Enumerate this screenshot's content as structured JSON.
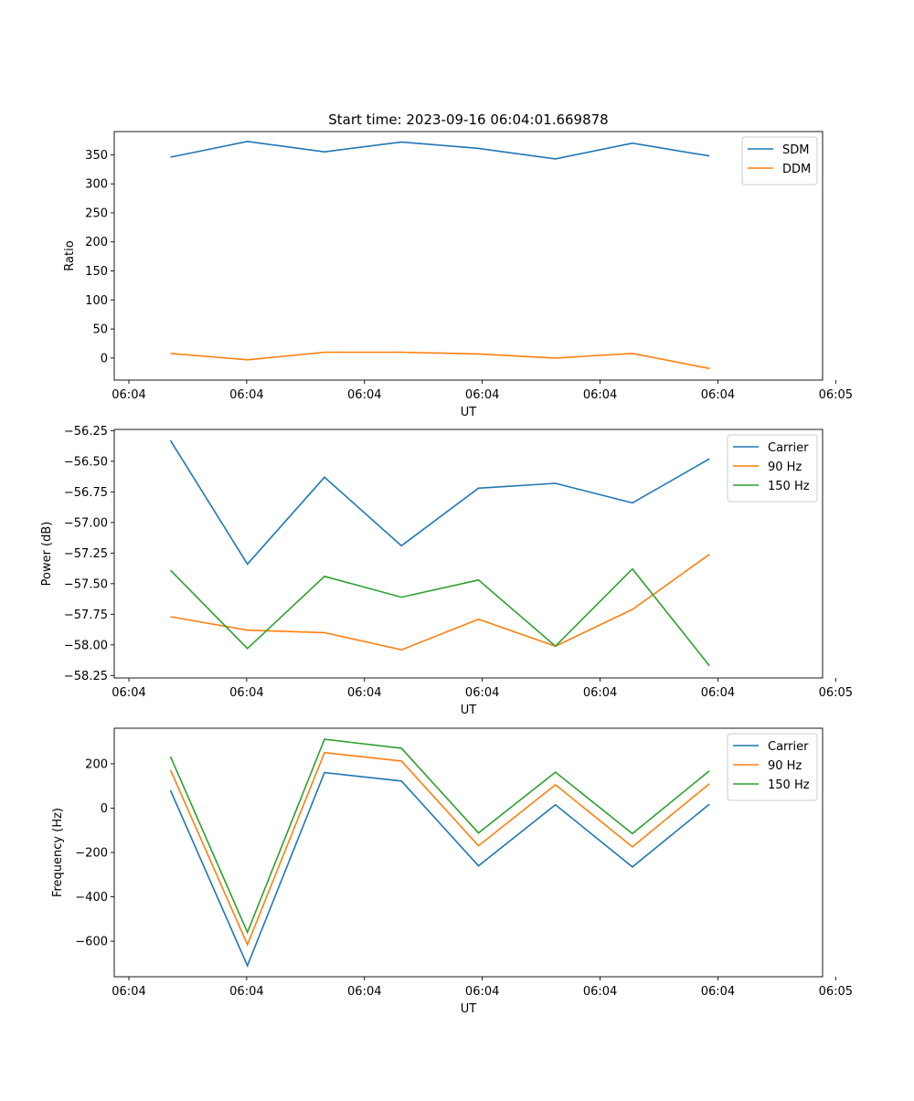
{
  "title": "Start time: 2023-09-16 06:04:01.669878",
  "chart_data": [
    {
      "type": "line",
      "ylabel": "Ratio",
      "xlabel": "UT",
      "x": [
        1,
        2,
        3,
        4,
        5,
        6,
        7,
        8
      ],
      "xlim": [
        0.27,
        9.47
      ],
      "xticks": [
        {
          "x": 0.46,
          "label": "06:04"
        },
        {
          "x": 1.99,
          "label": "06:04"
        },
        {
          "x": 3.52,
          "label": "06:04"
        },
        {
          "x": 5.05,
          "label": "06:04"
        },
        {
          "x": 6.58,
          "label": "06:04"
        },
        {
          "x": 8.11,
          "label": "06:04"
        },
        {
          "x": 9.64,
          "label": "06:05"
        }
      ],
      "ylim": [
        -38,
        390
      ],
      "yticks": [
        0,
        50,
        100,
        150,
        200,
        250,
        300,
        350
      ],
      "legend": "top-right",
      "series": [
        {
          "name": "SDM",
          "color": "#1f77b4",
          "values": [
            346,
            373,
            355,
            372,
            361,
            343,
            370,
            348
          ]
        },
        {
          "name": "DDM",
          "color": "#ff7f0e",
          "values": [
            8,
            -3,
            10,
            10,
            7,
            0,
            8,
            -18
          ]
        }
      ]
    },
    {
      "type": "line",
      "ylabel": "Power (dB)",
      "xlabel": "UT",
      "x": [
        1,
        2,
        3,
        4,
        5,
        6,
        7,
        8
      ],
      "xlim": [
        0.27,
        9.47
      ],
      "xticks": [
        {
          "x": 0.46,
          "label": "06:04"
        },
        {
          "x": 1.99,
          "label": "06:04"
        },
        {
          "x": 3.52,
          "label": "06:04"
        },
        {
          "x": 5.05,
          "label": "06:04"
        },
        {
          "x": 6.58,
          "label": "06:04"
        },
        {
          "x": 8.11,
          "label": "06:04"
        },
        {
          "x": 9.64,
          "label": "06:05"
        }
      ],
      "ylim": [
        -58.27,
        -56.24
      ],
      "yticks": [
        -58.25,
        -58.0,
        -57.75,
        -57.5,
        -57.25,
        -57.0,
        -56.75,
        -56.5,
        -56.25
      ],
      "ytick_labels": [
        "−58.25",
        "−58.00",
        "−57.75",
        "−57.50",
        "−57.25",
        "−57.00",
        "−56.75",
        "−56.50",
        "−56.25"
      ],
      "legend": "top-right",
      "series": [
        {
          "name": "Carrier",
          "color": "#1f77b4",
          "values": [
            -56.33,
            -57.34,
            -56.63,
            -57.19,
            -56.72,
            -56.68,
            -56.84,
            -56.48
          ]
        },
        {
          "name": "90 Hz",
          "color": "#ff7f0e",
          "values": [
            -57.77,
            -57.88,
            -57.9,
            -58.04,
            -57.79,
            -58.01,
            -57.71,
            -57.26
          ]
        },
        {
          "name": "150 Hz",
          "color": "#2ca02c",
          "values": [
            -57.39,
            -58.03,
            -57.44,
            -57.61,
            -57.47,
            -58.01,
            -57.38,
            -58.17
          ]
        }
      ]
    },
    {
      "type": "line",
      "ylabel": "Frequency (Hz)",
      "xlabel": "UT",
      "x": [
        1,
        2,
        3,
        4,
        5,
        6,
        7,
        8
      ],
      "xlim": [
        0.27,
        9.47
      ],
      "xticks": [
        {
          "x": 0.46,
          "label": "06:04"
        },
        {
          "x": 1.99,
          "label": "06:04"
        },
        {
          "x": 3.52,
          "label": "06:04"
        },
        {
          "x": 5.05,
          "label": "06:04"
        },
        {
          "x": 6.58,
          "label": "06:04"
        },
        {
          "x": 8.11,
          "label": "06:04"
        },
        {
          "x": 9.64,
          "label": "06:05"
        }
      ],
      "ylim": [
        -760,
        360
      ],
      "yticks": [
        -600,
        -400,
        -200,
        0,
        200
      ],
      "ytick_labels": [
        "−600",
        "−400",
        "−200",
        "0",
        "200"
      ],
      "legend": "top-right",
      "series": [
        {
          "name": "Carrier",
          "color": "#1f77b4",
          "values": [
            80,
            -710,
            160,
            122,
            -260,
            15,
            -265,
            18
          ]
        },
        {
          "name": "90 Hz",
          "color": "#ff7f0e",
          "values": [
            172,
            -615,
            250,
            212,
            -170,
            105,
            -175,
            110
          ]
        },
        {
          "name": "150 Hz",
          "color": "#2ca02c",
          "values": [
            232,
            -560,
            310,
            270,
            -112,
            162,
            -115,
            168
          ]
        }
      ]
    }
  ]
}
